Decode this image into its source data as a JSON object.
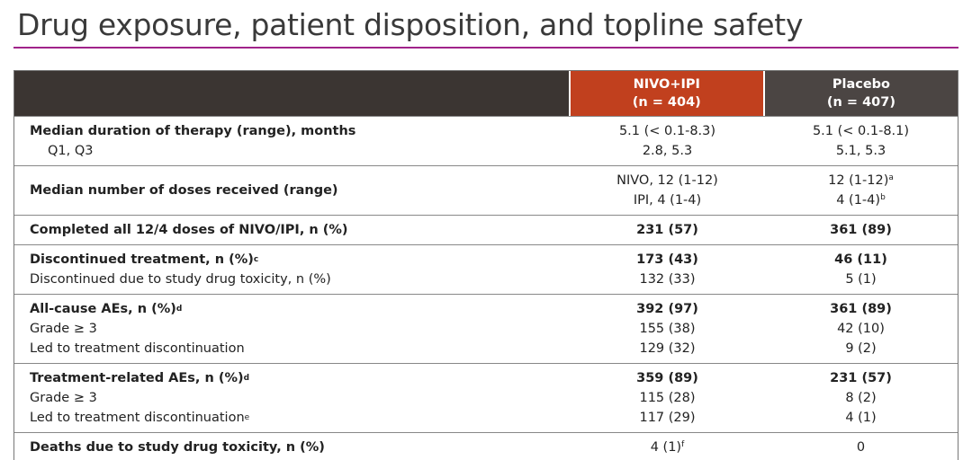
{
  "title": "Drug exposure, patient disposition, and topline safety",
  "table": {
    "header": [
      {
        "name": "NIVO+IPI",
        "n": "(n = 404)",
        "color": "#c1401e"
      },
      {
        "name": "Placebo",
        "n": "(n = 407)",
        "color": "#4b4543"
      }
    ],
    "groups": [
      {
        "rows": [
          {
            "label": "Median duration of therapy (range), months",
            "bold": true,
            "cells": [
              "5.1 (< 0.1-8.3)",
              "5.1 (< 0.1-8.1)"
            ]
          },
          {
            "label": "Q1, Q3",
            "indent": true,
            "cells": [
              "2.8, 5.3",
              "5.1, 5.3"
            ]
          }
        ]
      },
      {
        "rows": [
          {
            "label": "Median number of doses received (range)",
            "bold": true,
            "cells": [
              [
                "NIVO, 12 (1-12)",
                "IPI, 4 (1-4)"
              ],
              [
                {
                  "text": "12 (1-12)",
                  "sup": "a"
                },
                {
                  "text": "4 (1-4)",
                  "sup": "b"
                }
              ]
            ]
          }
        ]
      },
      {
        "rows": [
          {
            "label": "Completed all 12/4 doses of NIVO/IPI, n (%)",
            "bold": true,
            "cells_bold": true,
            "cells": [
              "231 (57)",
              "361 (89)"
            ]
          }
        ]
      },
      {
        "rows": [
          {
            "label": "Discontinued treatment, n (%)",
            "label_sup": "c",
            "bold": true,
            "cells_bold": true,
            "cells": [
              "173 (43)",
              "46 (11)"
            ]
          },
          {
            "label": "Discontinued due to study drug toxicity, n (%)",
            "cells": [
              "132 (33)",
              "5 (1)"
            ]
          }
        ]
      },
      {
        "rows": [
          {
            "label": "All-cause AEs, n (%)",
            "label_sup": "d",
            "bold": true,
            "cells_bold": true,
            "cells": [
              "392 (97)",
              "361 (89)"
            ]
          },
          {
            "label": "Grade ≥ 3",
            "cells": [
              "155 (38)",
              "42 (10)"
            ]
          },
          {
            "label": "Led to treatment discontinuation",
            "cells": [
              "129 (32)",
              "9 (2)"
            ]
          }
        ]
      },
      {
        "rows": [
          {
            "label": "Treatment-related AEs, n (%)",
            "label_sup": "d",
            "bold": true,
            "cells_bold": true,
            "cells": [
              "359 (89)",
              "231 (57)"
            ]
          },
          {
            "label": "Grade ≥ 3",
            "cells": [
              "115 (28)",
              "8 (2)"
            ]
          },
          {
            "label": "Led to treatment discontinuation",
            "label_sup": "e",
            "cells": [
              "117 (29)",
              "4 (1)"
            ]
          }
        ]
      },
      {
        "rows": [
          {
            "label": "Deaths due to study drug toxicity, n (%)",
            "bold": true,
            "cells": [
              {
                "text": "4 (1)",
                "sup": "f"
              },
              "0"
            ]
          }
        ]
      }
    ]
  }
}
